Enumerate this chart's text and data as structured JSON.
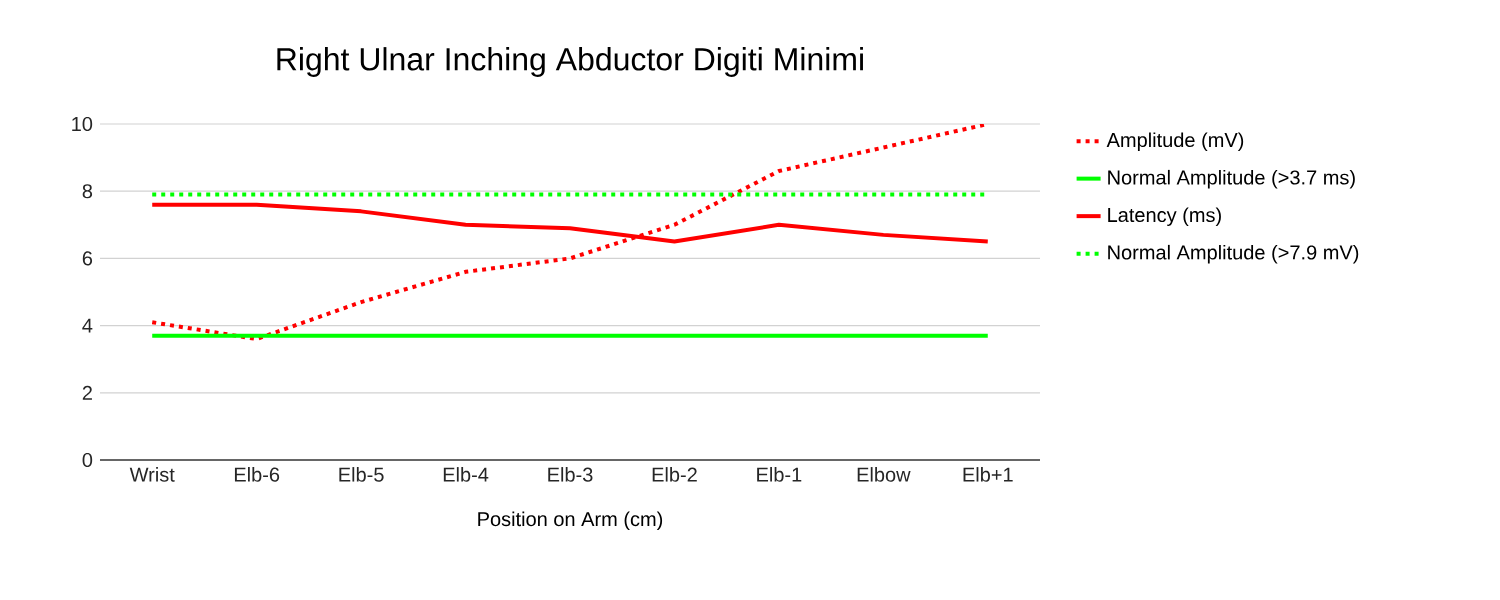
{
  "chart_data": {
    "type": "line",
    "title": "Right Ulnar Inching Abductor Digiti Minimi",
    "xlabel": "Position on Arm (cm)",
    "categories": [
      "Wrist",
      "Elb-6",
      "Elb-5",
      "Elb-4",
      "Elb-3",
      "Elb-2",
      "Elb-1",
      "Elbow",
      "Elb+1"
    ],
    "series": [
      {
        "name": "Amplitude (mV)",
        "color": "#ff0000",
        "line_style": "dotted",
        "values": [
          4.1,
          3.6,
          4.7,
          5.6,
          6.0,
          7.0,
          8.6,
          9.3,
          10.0
        ]
      },
      {
        "name": "Normal Amplitude (>3.7 ms)",
        "color": "#00ff00",
        "line_style": "solid",
        "values": [
          3.7,
          3.7,
          3.7,
          3.7,
          3.7,
          3.7,
          3.7,
          3.7,
          3.7
        ]
      },
      {
        "name": "Latency (ms)",
        "color": "#ff0000",
        "line_style": "solid",
        "values": [
          7.6,
          7.6,
          7.4,
          7.0,
          6.9,
          6.5,
          7.0,
          6.7,
          6.5
        ]
      },
      {
        "name": "Normal Amplitude (>7.9 mV)",
        "color": "#00ff00",
        "line_style": "dotted",
        "values": [
          7.9,
          7.9,
          7.9,
          7.9,
          7.9,
          7.9,
          7.9,
          7.9,
          7.9
        ]
      }
    ],
    "ylim": [
      0,
      10
    ],
    "yticks": [
      0,
      2,
      4,
      6,
      8,
      10
    ],
    "grid": "y",
    "legend": "right",
    "marker": "none"
  }
}
